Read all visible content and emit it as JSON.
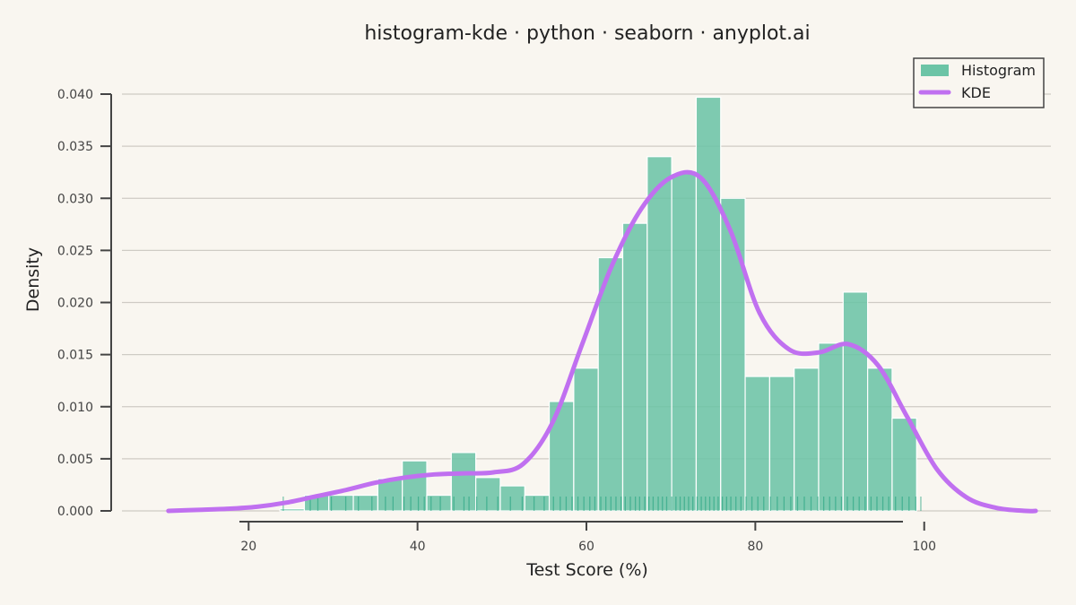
{
  "chart_data": {
    "type": "histogram",
    "title": "histogram-kde · python · seaborn · anyplot.ai",
    "xlabel": "Test Score (%)",
    "ylabel": "Density",
    "xlim": [
      5,
      115
    ],
    "ylim": [
      0,
      0.04
    ],
    "xticks": [
      20,
      40,
      60,
      80,
      100
    ],
    "xtick_labels": [
      "20",
      "40",
      "60",
      "80",
      "100"
    ],
    "yticks": [
      0,
      0.005,
      0.01,
      0.015,
      0.02,
      0.025,
      0.03,
      0.035,
      0.04
    ],
    "ytick_labels": [
      "0.000",
      "0.005",
      "0.010",
      "0.015",
      "0.020",
      "0.025",
      "0.030",
      "0.035",
      "0.040"
    ],
    "grid": "horizontal",
    "legend": {
      "placement": "top-right",
      "entries": [
        {
          "label": "Histogram",
          "kind": "patch"
        },
        {
          "label": "KDE",
          "kind": "line"
        }
      ]
    },
    "colors": {
      "bars": "#6cc4a6",
      "kde": "#c070f0",
      "rug": "#1a9e7a",
      "background": "#f9f6f0"
    },
    "bins": [
      {
        "x0": 23.7,
        "x1": 26.6,
        "density": 0.0002
      },
      {
        "x0": 26.6,
        "x1": 29.5,
        "density": 0.0015
      },
      {
        "x0": 29.5,
        "x1": 32.4,
        "density": 0.0015
      },
      {
        "x0": 32.4,
        "x1": 35.3,
        "density": 0.0015
      },
      {
        "x0": 35.3,
        "x1": 38.2,
        "density": 0.0031
      },
      {
        "x0": 38.2,
        "x1": 41.1,
        "density": 0.0048
      },
      {
        "x0": 41.1,
        "x1": 44.0,
        "density": 0.0015
      },
      {
        "x0": 44.0,
        "x1": 46.9,
        "density": 0.0056
      },
      {
        "x0": 46.9,
        "x1": 49.8,
        "density": 0.0032
      },
      {
        "x0": 49.8,
        "x1": 52.7,
        "density": 0.0024
      },
      {
        "x0": 52.7,
        "x1": 55.6,
        "density": 0.0015
      },
      {
        "x0": 55.6,
        "x1": 58.5,
        "density": 0.0105
      },
      {
        "x0": 58.5,
        "x1": 61.4,
        "density": 0.0137
      },
      {
        "x0": 61.4,
        "x1": 64.3,
        "density": 0.0243
      },
      {
        "x0": 64.3,
        "x1": 67.2,
        "density": 0.0276
      },
      {
        "x0": 67.2,
        "x1": 70.1,
        "density": 0.034
      },
      {
        "x0": 70.1,
        "x1": 73.0,
        "density": 0.0324
      },
      {
        "x0": 73.0,
        "x1": 75.9,
        "density": 0.0397
      },
      {
        "x0": 75.9,
        "x1": 78.8,
        "density": 0.03
      },
      {
        "x0": 78.8,
        "x1": 81.7,
        "density": 0.0129
      },
      {
        "x0": 81.7,
        "x1": 84.6,
        "density": 0.0129
      },
      {
        "x0": 84.6,
        "x1": 87.5,
        "density": 0.0137
      },
      {
        "x0": 87.5,
        "x1": 90.4,
        "density": 0.0161
      },
      {
        "x0": 90.4,
        "x1": 93.3,
        "density": 0.021
      },
      {
        "x0": 93.3,
        "x1": 96.2,
        "density": 0.0137
      },
      {
        "x0": 96.2,
        "x1": 99.1,
        "density": 0.0089
      }
    ],
    "kde": {
      "x": [
        10.5,
        14,
        17.5,
        21,
        24.5,
        28,
        31.5,
        35,
        38.5,
        42,
        45.5,
        49,
        52.5,
        56,
        59.5,
        63,
        66.5,
        70,
        73.5,
        77,
        80.5,
        84,
        87.5,
        91,
        94.5,
        98,
        101.5,
        105,
        108.5,
        112,
        113.2
      ],
      "y": [
        0.0,
        0.0001,
        0.0002,
        0.0004,
        0.0008,
        0.0014,
        0.002,
        0.0027,
        0.0032,
        0.0035,
        0.0036,
        0.0037,
        0.0045,
        0.0085,
        0.016,
        0.0235,
        0.029,
        0.032,
        0.032,
        0.027,
        0.019,
        0.0155,
        0.0152,
        0.016,
        0.014,
        0.009,
        0.004,
        0.0013,
        0.0003,
        0.0,
        0.0
      ]
    },
    "rug": [
      24.1,
      27.3,
      28.2,
      29.8,
      31.5,
      33.0,
      34.6,
      36.2,
      37.1,
      38.4,
      39.2,
      40.1,
      40.8,
      41.6,
      42.7,
      44.3,
      45.5,
      46.1,
      47.0,
      48.2,
      49.5,
      51.0,
      52.4,
      53.8,
      55.0,
      56.1,
      56.9,
      57.6,
      58.3,
      59.0,
      59.7,
      60.4,
      61.0,
      61.7,
      62.3,
      62.9,
      63.5,
      64.1,
      64.6,
      65.2,
      65.8,
      66.3,
      66.9,
      67.4,
      67.9,
      68.5,
      69.0,
      69.5,
      70.1,
      70.6,
      71.1,
      71.6,
      72.1,
      72.6,
      73.1,
      73.6,
      74.1,
      74.6,
      75.1,
      75.6,
      76.1,
      76.6,
      77.1,
      77.7,
      78.3,
      78.9,
      79.6,
      80.3,
      81.0,
      81.8,
      82.6,
      83.4,
      84.2,
      85.0,
      85.8,
      86.6,
      87.4,
      88.1,
      88.8,
      89.5,
      90.2,
      90.9,
      91.6,
      92.3,
      93.0,
      93.7,
      94.4,
      95.1,
      95.8,
      96.6,
      97.4,
      98.2,
      99.0,
      99.6
    ]
  }
}
